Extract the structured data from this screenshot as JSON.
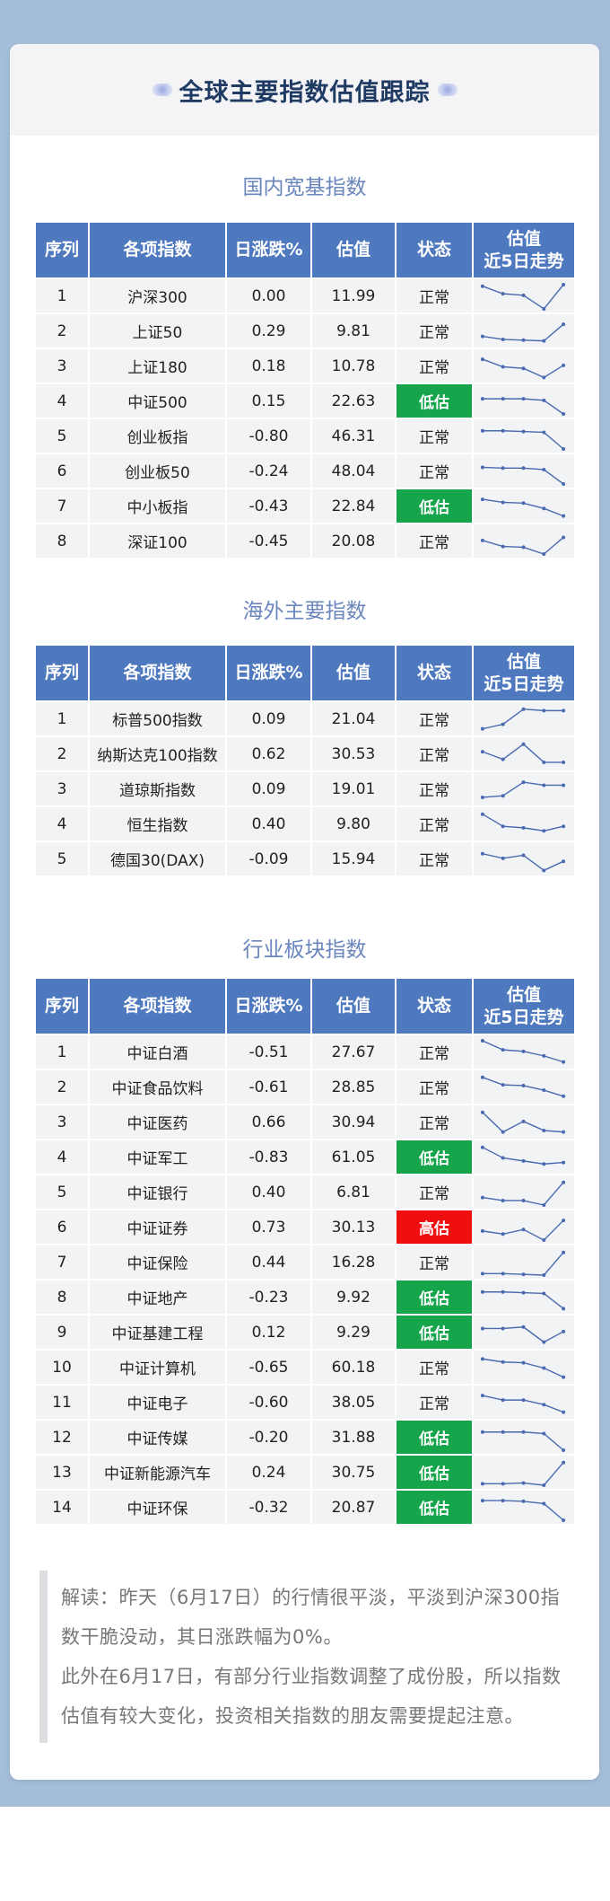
{
  "page": {
    "title": "全球主要指数估值跟踪"
  },
  "headers": {
    "seq": "序列",
    "name": "各项指数",
    "change": "日涨跌%",
    "valuation": "估值",
    "status": "状态",
    "trend_l1": "估值",
    "trend_l2": "近5日走势"
  },
  "colors": {
    "header_bg": "#4f79bf",
    "section_title": "#6a86bd",
    "status_low": "#16a54b",
    "status_high": "#f00f0f",
    "sparkline": "#4a6ab0"
  },
  "sections": [
    {
      "title": "国内宽基指数",
      "rows": [
        {
          "seq": "1",
          "name": "沪深300",
          "change": "0.00",
          "valuation": "11.99",
          "status": "正常",
          "status_level": "normal",
          "trend": [
            4,
            3,
            2.8,
            1,
            4.2
          ]
        },
        {
          "seq": "2",
          "name": "上证50",
          "change": "0.29",
          "valuation": "9.81",
          "status": "正常",
          "status_level": "normal",
          "trend": [
            2,
            1.6,
            1.5,
            1.4,
            3.6
          ]
        },
        {
          "seq": "3",
          "name": "上证180",
          "change": "0.18",
          "valuation": "10.78",
          "status": "正常",
          "status_level": "normal",
          "trend": [
            3.6,
            2.6,
            2.4,
            1.2,
            2.8
          ]
        },
        {
          "seq": "4",
          "name": "中证500",
          "change": "0.15",
          "valuation": "22.63",
          "status": "低估",
          "status_level": "low",
          "trend": [
            3,
            3,
            3,
            2.8,
            1
          ]
        },
        {
          "seq": "5",
          "name": "创业板指",
          "change": "-0.80",
          "valuation": "46.31",
          "status": "正常",
          "status_level": "normal",
          "trend": [
            3.4,
            3.4,
            3.3,
            3.2,
            1
          ]
        },
        {
          "seq": "6",
          "name": "创业板50",
          "change": "-0.24",
          "valuation": "48.04",
          "status": "正常",
          "status_level": "normal",
          "trend": [
            3.2,
            3.1,
            3.1,
            2.9,
            1
          ]
        },
        {
          "seq": "7",
          "name": "中小板指",
          "change": "-0.43",
          "valuation": "22.84",
          "status": "低估",
          "status_level": "low",
          "trend": [
            3.6,
            3.2,
            3.1,
            2.4,
            1.4
          ]
        },
        {
          "seq": "8",
          "name": "深证100",
          "change": "-0.45",
          "valuation": "20.08",
          "status": "正常",
          "status_level": "normal",
          "trend": [
            2.8,
            2.0,
            1.9,
            1.0,
            3.2
          ]
        }
      ]
    },
    {
      "title": "海外主要指数",
      "rows": [
        {
          "seq": "1",
          "name": "标普500指数",
          "change": "0.09",
          "valuation": "21.04",
          "status": "正常",
          "status_level": "normal",
          "trend": [
            1.4,
            2.0,
            4.0,
            3.8,
            3.8
          ]
        },
        {
          "seq": "2",
          "name": "纳斯达克100指数",
          "change": "0.62",
          "valuation": "30.53",
          "status": "正常",
          "status_level": "normal",
          "trend": [
            3.0,
            2.0,
            4.0,
            1.6,
            1.6
          ]
        },
        {
          "seq": "3",
          "name": "道琼斯指数",
          "change": "0.09",
          "valuation": "19.01",
          "status": "正常",
          "status_level": "normal",
          "trend": [
            1.6,
            1.8,
            3.6,
            3.2,
            3.2
          ]
        },
        {
          "seq": "4",
          "name": "恒生指数",
          "change": "0.40",
          "valuation": "9.80",
          "status": "正常",
          "status_level": "normal",
          "trend": [
            4.0,
            2.4,
            2.2,
            1.8,
            2.4
          ]
        },
        {
          "seq": "5",
          "name": "德国30(DAX)",
          "change": "-0.09",
          "valuation": "15.94",
          "status": "正常",
          "status_level": "normal",
          "trend": [
            3.4,
            2.8,
            3.2,
            1.2,
            2.4
          ]
        }
      ]
    },
    {
      "title": "行业板块指数",
      "rows": [
        {
          "seq": "1",
          "name": "中证白酒",
          "change": "-0.51",
          "valuation": "27.67",
          "status": "正常",
          "status_level": "normal",
          "trend": [
            4.2,
            3.0,
            2.8,
            2.2,
            1.4
          ]
        },
        {
          "seq": "2",
          "name": "中证食品饮料",
          "change": "-0.61",
          "valuation": "28.85",
          "status": "正常",
          "status_level": "normal",
          "trend": [
            4.0,
            3.0,
            2.9,
            2.3,
            1.5
          ]
        },
        {
          "seq": "3",
          "name": "中证医药",
          "change": "0.66",
          "valuation": "30.94",
          "status": "正常",
          "status_level": "normal",
          "trend": [
            4.0,
            1.4,
            2.8,
            1.6,
            1.4
          ]
        },
        {
          "seq": "4",
          "name": "中证军工",
          "change": "-0.83",
          "valuation": "61.05",
          "status": "低估",
          "status_level": "low",
          "trend": [
            4.0,
            2.6,
            2.2,
            1.8,
            2.0
          ]
        },
        {
          "seq": "5",
          "name": "中证银行",
          "change": "0.40",
          "valuation": "6.81",
          "status": "正常",
          "status_level": "normal",
          "trend": [
            2.0,
            1.6,
            1.6,
            1.0,
            4.0
          ]
        },
        {
          "seq": "6",
          "name": "中证证券",
          "change": "0.73",
          "valuation": "30.13",
          "status": "高估",
          "status_level": "high",
          "trend": [
            2.2,
            1.8,
            2.4,
            1.0,
            3.6
          ]
        },
        {
          "seq": "7",
          "name": "中证保险",
          "change": "0.44",
          "valuation": "16.28",
          "status": "正常",
          "status_level": "normal",
          "trend": [
            1.2,
            1.2,
            1.1,
            1.0,
            4.0
          ]
        },
        {
          "seq": "8",
          "name": "中证地产",
          "change": "-0.23",
          "valuation": "9.92",
          "status": "低估",
          "status_level": "low",
          "trend": [
            3.4,
            3.4,
            3.3,
            3.2,
            1.2
          ]
        },
        {
          "seq": "9",
          "name": "中证基建工程",
          "change": "0.12",
          "valuation": "9.29",
          "status": "低估",
          "status_level": "low",
          "trend": [
            3.2,
            3.2,
            3.4,
            1.4,
            2.8
          ]
        },
        {
          "seq": "10",
          "name": "中证计算机",
          "change": "-0.65",
          "valuation": "60.18",
          "status": "正常",
          "status_level": "normal",
          "trend": [
            3.8,
            3.4,
            3.3,
            2.6,
            1.4
          ]
        },
        {
          "seq": "11",
          "name": "中证电子",
          "change": "-0.60",
          "valuation": "38.05",
          "status": "正常",
          "status_level": "normal",
          "trend": [
            3.6,
            3.0,
            3.0,
            2.4,
            1.4
          ]
        },
        {
          "seq": "12",
          "name": "中证传媒",
          "change": "-0.20",
          "valuation": "31.88",
          "status": "低估",
          "status_level": "low",
          "trend": [
            3.4,
            3.4,
            3.4,
            3.2,
            1.0
          ]
        },
        {
          "seq": "13",
          "name": "中证新能源汽车",
          "change": "0.24",
          "valuation": "30.75",
          "status": "低估",
          "status_level": "low",
          "trend": [
            1.2,
            1.2,
            1.3,
            1.0,
            4.0
          ]
        },
        {
          "seq": "14",
          "name": "中证环保",
          "change": "-0.32",
          "valuation": "20.87",
          "status": "低估",
          "status_level": "low",
          "trend": [
            3.6,
            3.6,
            3.5,
            3.2,
            1.0
          ]
        }
      ]
    }
  ],
  "note": {
    "paragraph1": "解读：昨天（6月17日）的行情很平淡，平淡到沪深300指数干脆没动，其日涨跌幅为0%。",
    "paragraph2": "此外在6月17日，有部分行业指数调整了成份股，所以指数估值有较大变化，投资相关指数的朋友需要提起注意。"
  }
}
